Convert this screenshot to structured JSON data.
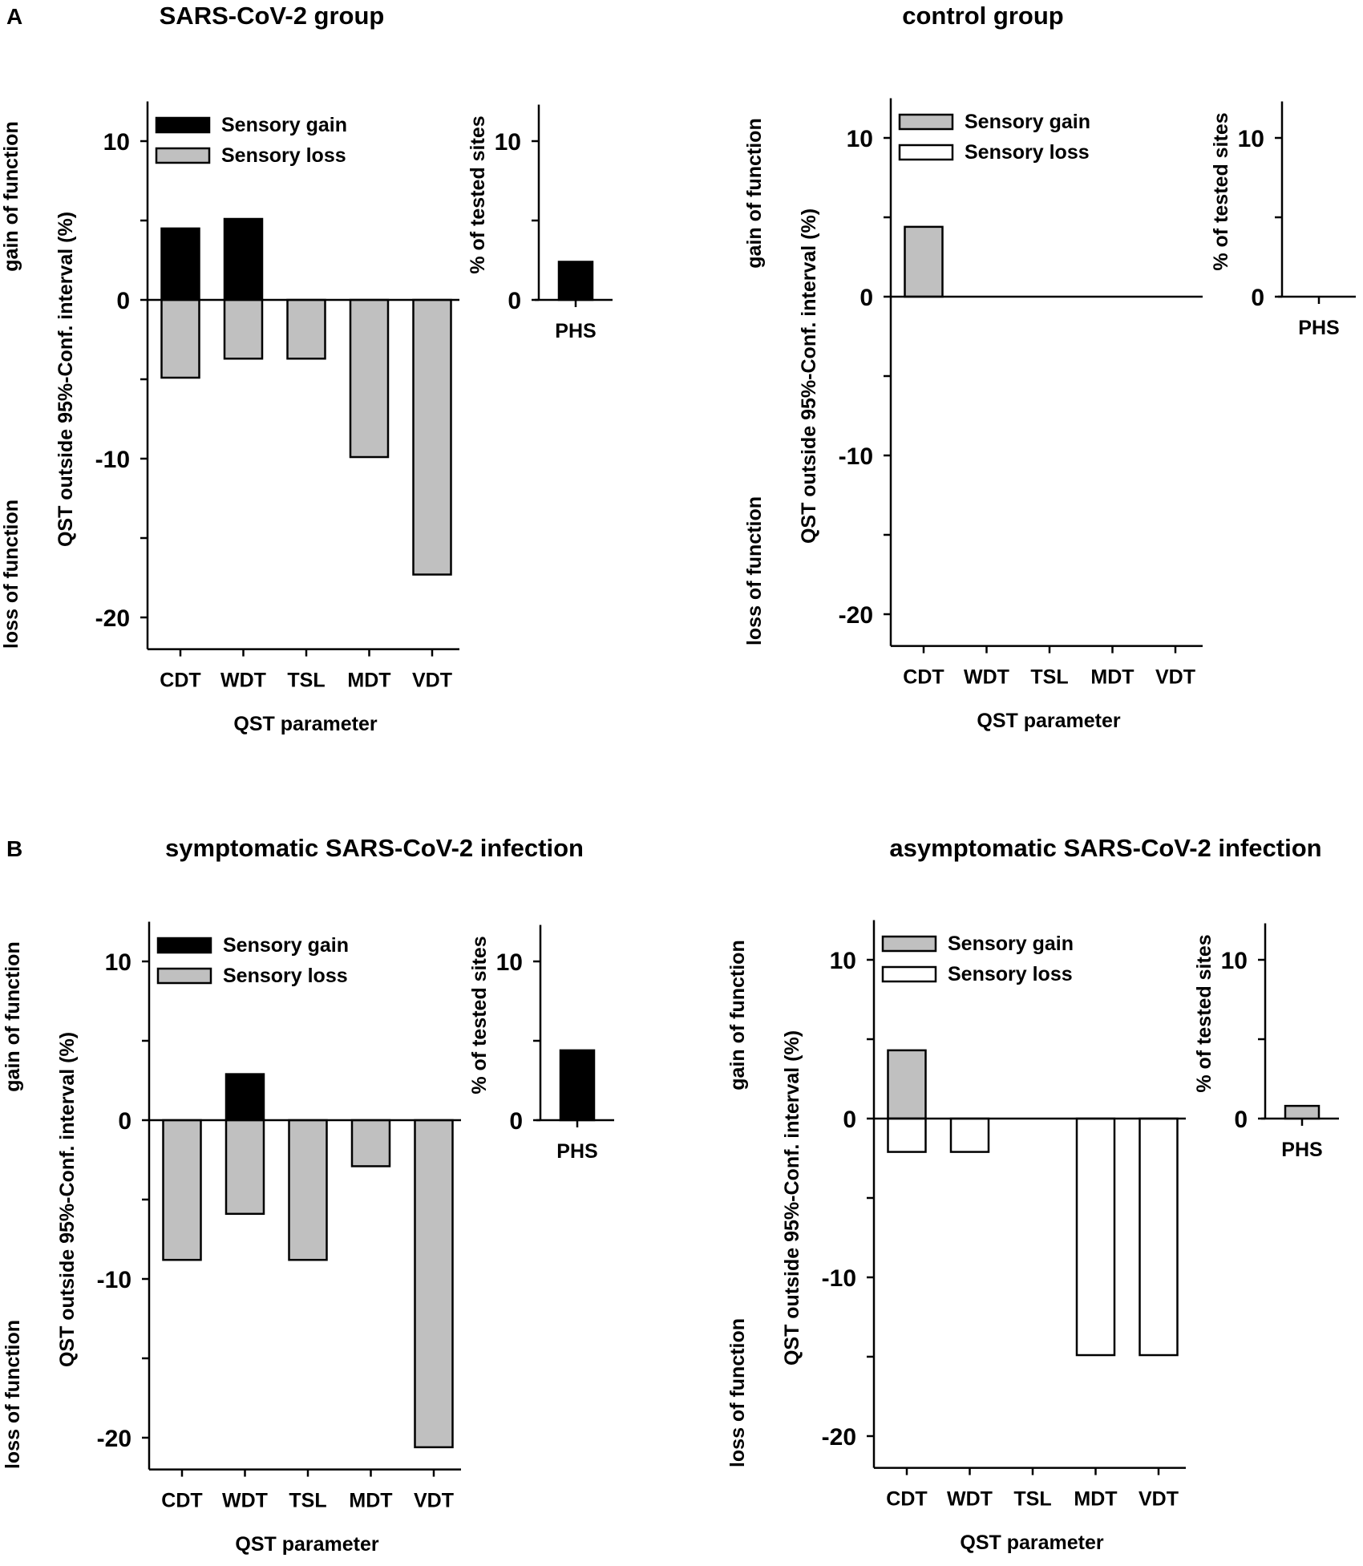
{
  "figure_letters": [
    "A",
    "B"
  ],
  "colors": {
    "black": "#000000",
    "gray": "#c0c0c0",
    "white": "#ffffff"
  },
  "chart_data": [
    {
      "type": "bar",
      "title": "SARS-CoV-2 group",
      "categories": [
        "CDT",
        "WDT",
        "TSL",
        "MDT",
        "VDT"
      ],
      "xlabel": "QST parameter",
      "ylabel": "QST outside 95%-Conf. interval (%)",
      "side_labels": {
        "top": "gain of function",
        "bottom": "loss of function"
      },
      "ylim": [
        -22,
        12.5
      ],
      "yticks": [
        10,
        0,
        -10,
        -20
      ],
      "series": [
        {
          "name": "Sensory gain",
          "color": "#000000",
          "values": [
            4.5,
            5.1,
            0,
            0,
            0
          ]
        },
        {
          "name": "Sensory loss",
          "color": "#c0c0c0",
          "values": [
            -4.9,
            -3.7,
            -3.7,
            -9.9,
            -17.3
          ]
        }
      ],
      "inset": {
        "category": "PHS",
        "ylabel": "% of tested sites",
        "ylim": [
          0,
          12.5
        ],
        "yticks": [
          10,
          0
        ],
        "value": 2.4,
        "color": "#000000"
      },
      "legend": "top-left"
    },
    {
      "type": "bar",
      "title": "control group",
      "categories": [
        "CDT",
        "WDT",
        "TSL",
        "MDT",
        "VDT"
      ],
      "xlabel": "QST parameter",
      "ylabel": "QST outside 95%-Conf. interval (%)",
      "side_labels": {
        "top": "gain of function",
        "bottom": "loss of function"
      },
      "ylim": [
        -22,
        12.5
      ],
      "yticks": [
        10,
        0,
        -10,
        -20
      ],
      "series": [
        {
          "name": "Sensory gain",
          "color": "#c0c0c0",
          "values": [
            4.4,
            0,
            0,
            0,
            0
          ]
        },
        {
          "name": "Sensory loss",
          "color": "#ffffff",
          "values": [
            0,
            0,
            0,
            0,
            0
          ]
        }
      ],
      "inset": {
        "category": "PHS",
        "ylabel": "% of tested sites",
        "ylim": [
          0,
          12.5
        ],
        "yticks": [
          10,
          0
        ],
        "value": 0,
        "color": "#c0c0c0"
      },
      "legend": "top-left"
    },
    {
      "type": "bar",
      "title": "symptomatic SARS-CoV-2 infection",
      "categories": [
        "CDT",
        "WDT",
        "TSL",
        "MDT",
        "VDT"
      ],
      "xlabel": "QST parameter",
      "ylabel": "QST outside 95%-Conf. interval (%)",
      "side_labels": {
        "top": "gain of function",
        "bottom": "loss of function"
      },
      "ylim": [
        -22,
        12.5
      ],
      "yticks": [
        10,
        0,
        -10,
        -20
      ],
      "series": [
        {
          "name": "Sensory gain",
          "color": "#000000",
          "values": [
            0,
            2.9,
            0,
            0,
            0
          ]
        },
        {
          "name": "Sensory loss",
          "color": "#c0c0c0",
          "values": [
            -8.8,
            -5.9,
            -8.8,
            -2.9,
            -20.6
          ]
        }
      ],
      "inset": {
        "category": "PHS",
        "ylabel": "% of tested sites",
        "ylim": [
          0,
          12.5
        ],
        "yticks": [
          10,
          0
        ],
        "value": 4.4,
        "color": "#000000"
      },
      "legend": "top-left"
    },
    {
      "type": "bar",
      "title": "asymptomatic SARS-CoV-2 infection",
      "categories": [
        "CDT",
        "WDT",
        "TSL",
        "MDT",
        "VDT"
      ],
      "xlabel": "QST parameter",
      "ylabel": "QST outside 95%-Conf. interval (%)",
      "side_labels": {
        "top": "gain of function",
        "bottom": "loss of function"
      },
      "ylim": [
        -22,
        12.5
      ],
      "yticks": [
        10,
        0,
        -10,
        -20
      ],
      "series": [
        {
          "name": "Sensory gain",
          "color": "#c0c0c0",
          "values": [
            4.3,
            0,
            0,
            0,
            0
          ]
        },
        {
          "name": "Sensory loss",
          "color": "#ffffff",
          "values": [
            -2.1,
            -2.1,
            0,
            -14.9,
            -14.9
          ]
        }
      ],
      "inset": {
        "category": "PHS",
        "ylabel": "% of tested sites",
        "ylim": [
          0,
          12.5
        ],
        "yticks": [
          10,
          0
        ],
        "value": 0.8,
        "color": "#c0c0c0"
      },
      "legend": "top-left"
    }
  ]
}
